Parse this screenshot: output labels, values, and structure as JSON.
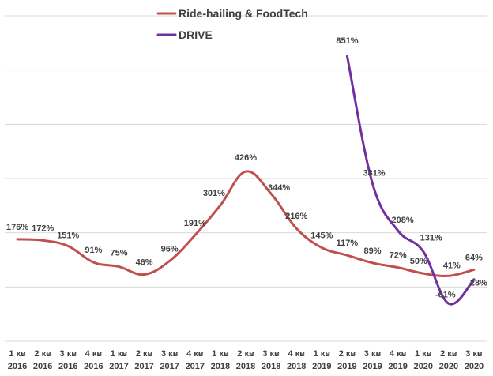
{
  "chart_data": {
    "type": "line",
    "title": "",
    "xlabel": "",
    "ylabel": "",
    "ylim": [
      -200,
      1000
    ],
    "grid": true,
    "legend_position": "top-center",
    "categories": [
      {
        "q": "1 кв",
        "y": "2016"
      },
      {
        "q": "2 кв",
        "y": "2016"
      },
      {
        "q": "3 кв",
        "y": "2016"
      },
      {
        "q": "4 кв",
        "y": "2016"
      },
      {
        "q": "1 кв",
        "y": "2017"
      },
      {
        "q": "2 кв",
        "y": "2017"
      },
      {
        "q": "3 кв",
        "y": "2017"
      },
      {
        "q": "4 кв",
        "y": "2017"
      },
      {
        "q": "1 кв",
        "y": "2018"
      },
      {
        "q": "2 кв",
        "y": "2018"
      },
      {
        "q": "3 кв",
        "y": "2018"
      },
      {
        "q": "4 кв",
        "y": "2018"
      },
      {
        "q": "1 кв",
        "y": "2019"
      },
      {
        "q": "2 кв",
        "y": "2019"
      },
      {
        "q": "3 кв",
        "y": "2019"
      },
      {
        "q": "4 кв",
        "y": "2019"
      },
      {
        "q": "1 кв",
        "y": "2020"
      },
      {
        "q": "2 кв",
        "y": "2020"
      },
      {
        "q": "3 кв",
        "y": "2020"
      }
    ],
    "series": [
      {
        "name": "Ride-hailing & FoodTech",
        "color": "#c0504d",
        "values": [
          176,
          172,
          151,
          91,
          75,
          46,
          96,
          191,
          301,
          426,
          344,
          216,
          145,
          117,
          89,
          72,
          50,
          41,
          64
        ],
        "labels": [
          "176%",
          "172%",
          "151%",
          "91%",
          "75%",
          "46%",
          "96%",
          "191%",
          "301%",
          "426%",
          "344%",
          "216%",
          "145%",
          "117%",
          "89%",
          "72%",
          "50%",
          "41%",
          "64%"
        ]
      },
      {
        "name": "DRIVE",
        "color": "#7030a0",
        "values": [
          null,
          null,
          null,
          null,
          null,
          null,
          null,
          null,
          null,
          null,
          null,
          null,
          null,
          851,
          381,
          208,
          131,
          -61,
          28
        ],
        "labels": [
          null,
          null,
          null,
          null,
          null,
          null,
          null,
          null,
          null,
          null,
          null,
          null,
          null,
          "851%",
          "381%",
          "208%",
          "131%",
          "-61%",
          "28%"
        ]
      }
    ]
  }
}
